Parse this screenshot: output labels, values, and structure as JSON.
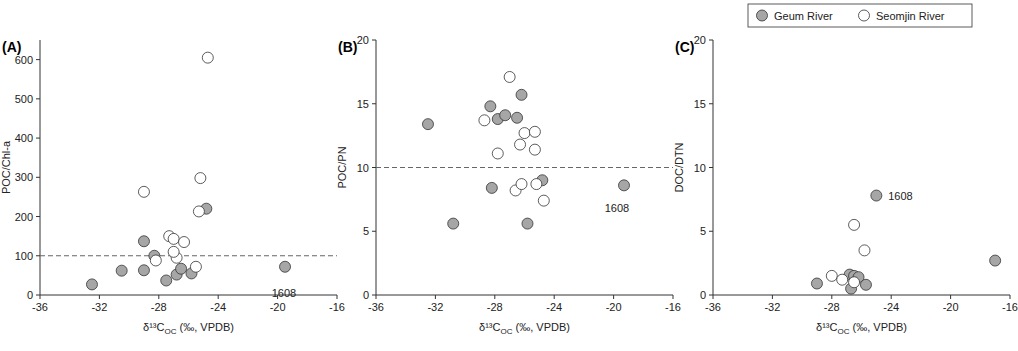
{
  "chart_data": [
    {
      "type": "scatter",
      "title": "(A)",
      "x_label": "δ¹³COC (‰, VPDB)",
      "y_label": "POC/Chl-a",
      "xlim": [
        -36,
        -16
      ],
      "xticks": [
        -36,
        -32,
        -28,
        -24,
        -20,
        -16
      ],
      "ylim": [
        0,
        650
      ],
      "yticks": [
        0,
        100,
        200,
        300,
        400,
        500,
        600
      ],
      "reference_lines": [
        {
          "y": 100,
          "line_style": "dashed"
        }
      ],
      "annotations": [
        {
          "text": "1608",
          "x": -20.4,
          "y": 5
        }
      ],
      "series": [
        {
          "name": "Geum River",
          "color": "#a6a6a6",
          "marker": "circle",
          "x": [
            -32.5,
            -30.5,
            -29.0,
            -29.0,
            -28.3,
            -27.5,
            -26.8,
            -26.5,
            -25.8,
            -24.8,
            -19.5
          ],
          "values": [
            27,
            62,
            137,
            63,
            100,
            37,
            52,
            67,
            55,
            220,
            72
          ]
        },
        {
          "name": "Seomjin River",
          "color": "#ffffff",
          "marker": "circle",
          "x": [
            -29.0,
            -28.2,
            -27.3,
            -27.0,
            -26.8,
            -26.3,
            -25.3,
            -25.2,
            -24.7,
            -25.5,
            -27.0
          ],
          "values": [
            263,
            88,
            150,
            143,
            95,
            135,
            213,
            298,
            605,
            72,
            110
          ]
        }
      ]
    },
    {
      "type": "scatter",
      "title": "(B)",
      "x_label": "δ¹³COC (‰, VPDB)",
      "y_label": "POC/PN",
      "xlim": [
        -36,
        -16
      ],
      "xticks": [
        -36,
        -32,
        -28,
        -24,
        -20,
        -16
      ],
      "ylim": [
        0,
        20
      ],
      "yticks": [
        0,
        5,
        10,
        15,
        20
      ],
      "reference_lines": [
        {
          "y": 10,
          "line_style": "dashed"
        }
      ],
      "annotations": [
        {
          "text": "1608",
          "x": -20.6,
          "y": 6.8
        }
      ],
      "series": [
        {
          "name": "Geum River",
          "color": "#a6a6a6",
          "marker": "circle",
          "x": [
            -32.5,
            -30.8,
            -28.3,
            -28.2,
            -27.8,
            -27.3,
            -26.5,
            -26.2,
            -25.8,
            -24.8,
            -19.3
          ],
          "values": [
            13.4,
            5.6,
            14.8,
            8.4,
            13.8,
            14.1,
            13.9,
            15.7,
            5.6,
            9.0,
            8.6
          ]
        },
        {
          "name": "Seomjin River",
          "color": "#ffffff",
          "marker": "circle",
          "x": [
            -28.7,
            -27.8,
            -27.0,
            -26.6,
            -26.3,
            -26.2,
            -26.0,
            -25.3,
            -25.3,
            -25.2,
            -24.7
          ],
          "values": [
            13.7,
            11.1,
            17.1,
            8.2,
            11.8,
            8.7,
            12.7,
            12.8,
            11.4,
            8.7,
            7.4
          ]
        }
      ]
    },
    {
      "type": "scatter",
      "title": "(C)",
      "x_label": "δ¹³COC (‰, VPDB)",
      "y_label": "DOC/DTN",
      "xlim": [
        -36,
        -16
      ],
      "xticks": [
        -36,
        -32,
        -28,
        -24,
        -20,
        -16
      ],
      "ylim": [
        0,
        20
      ],
      "yticks": [
        0,
        5,
        10,
        15,
        20
      ],
      "legend": "top-right",
      "annotations": [
        {
          "text": "1608",
          "x": -24.2,
          "y": 7.8
        }
      ],
      "series": [
        {
          "name": "Geum River",
          "color": "#a6a6a6",
          "marker": "circle",
          "x": [
            -29.0,
            -26.8,
            -26.5,
            -26.7,
            -26.2,
            -25.7,
            -25.0,
            -17.0
          ],
          "values": [
            0.9,
            1.6,
            1.5,
            0.5,
            1.4,
            0.8,
            7.8,
            2.7
          ]
        },
        {
          "name": "Seomjin River",
          "color": "#ffffff",
          "marker": "circle",
          "x": [
            -28.0,
            -27.3,
            -26.5,
            -25.8,
            -26.5
          ],
          "values": [
            1.5,
            1.2,
            5.5,
            3.5,
            1.0
          ]
        }
      ]
    }
  ]
}
